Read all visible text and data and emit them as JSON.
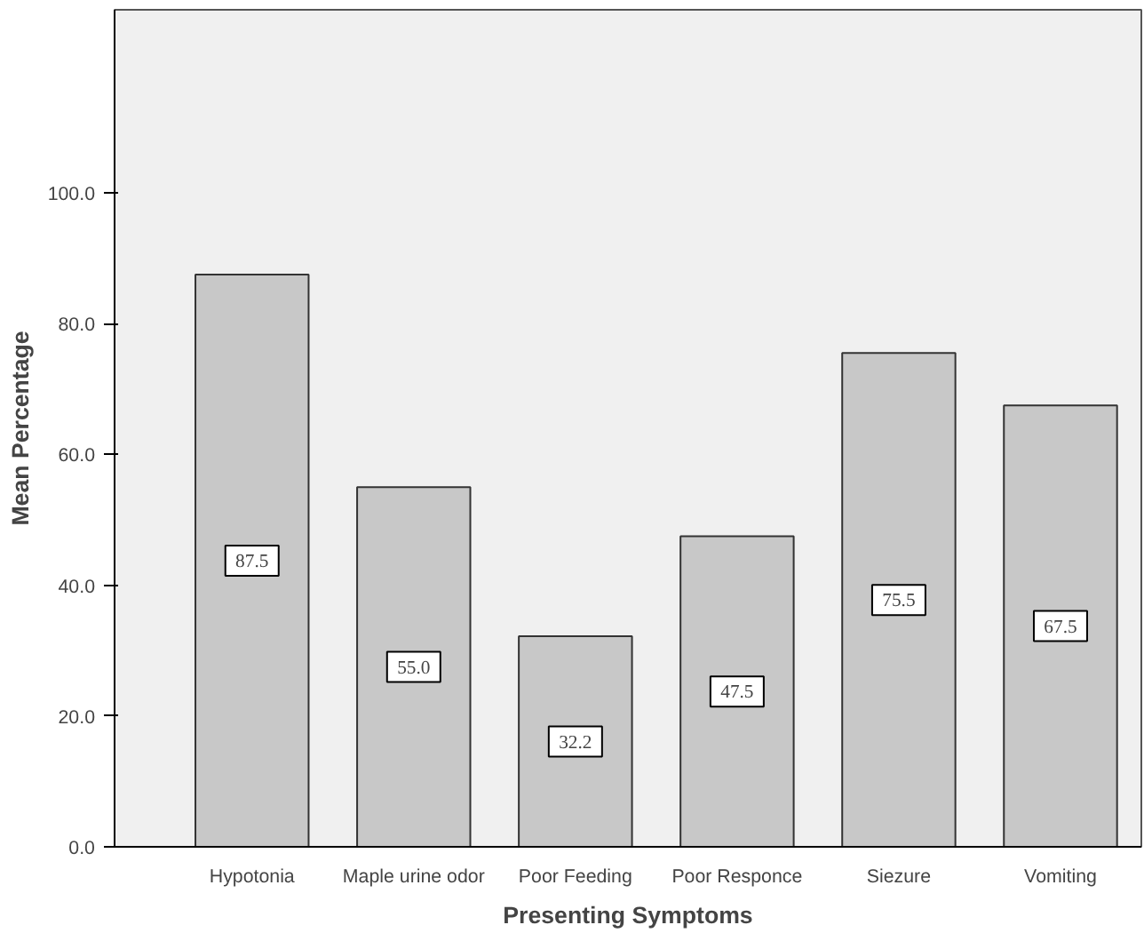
{
  "chart_data": {
    "type": "bar",
    "xlabel": "Presenting Symptoms",
    "ylabel": "Mean Percentage",
    "categories": [
      "Hypotonia",
      "Maple urine odor",
      "Poor Feeding",
      "Poor Responce",
      "Siezure",
      "Vomiting"
    ],
    "values": [
      87.5,
      55.0,
      32.2,
      47.5,
      75.5,
      67.5
    ],
    "color": "#c8c8c8",
    "data_labels": true,
    "value_labels": [
      "87.5",
      "55.0",
      "32.2",
      "47.5",
      "75.5",
      "67.5"
    ],
    "ylim": [
      0,
      128
    ],
    "yticks": [
      {
        "value": 0,
        "label": "0.0"
      },
      {
        "value": 20,
        "label": "20.0"
      },
      {
        "value": 40,
        "label": "40.0"
      },
      {
        "value": 60,
        "label": "60.0"
      },
      {
        "value": 80,
        "label": "80.0"
      },
      {
        "value": 100,
        "label": "100.0"
      }
    ],
    "grid": false
  }
}
